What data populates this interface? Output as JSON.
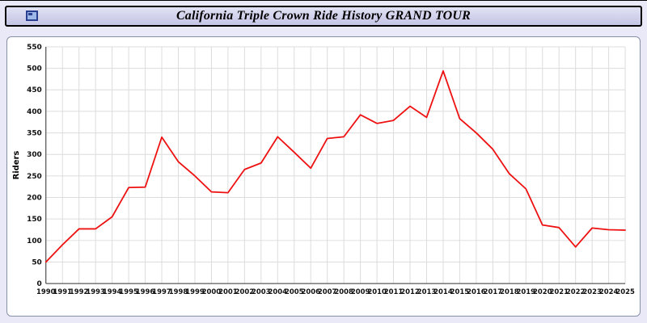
{
  "header": {
    "title": "California Triple Crown Ride History GRAND TOUR",
    "icon": "app-window-icon"
  },
  "colors": {
    "series": "#ee1111",
    "grid": "#dcdcdc",
    "axis": "#333333",
    "header_bg": "#cfcfec",
    "page_bg": "#e9e9f7"
  },
  "chart_data": {
    "type": "line",
    "title": "California Triple Crown Ride History GRAND TOUR",
    "xlabel": "",
    "ylabel": "Riders",
    "ylim": [
      0,
      550
    ],
    "ytick_step": 50,
    "grid": true,
    "legend": "none",
    "series_name": "Riders",
    "series_color": "#ee1111",
    "years": [
      1990,
      1991,
      1992,
      1993,
      1994,
      1995,
      1996,
      1997,
      1998,
      1999,
      2000,
      2001,
      2002,
      2003,
      2004,
      2005,
      2006,
      2007,
      2008,
      2009,
      2010,
      2011,
      2012,
      2013,
      2014,
      2015,
      2016,
      2017,
      2018,
      2019,
      2020,
      2021,
      2022,
      2023,
      2024,
      2025
    ],
    "values": [
      50,
      90,
      127,
      127,
      155,
      223,
      224,
      340,
      283,
      250,
      213,
      211,
      265,
      280,
      341,
      305,
      268,
      337,
      341,
      392,
      372,
      379,
      412,
      386,
      494,
      383,
      350,
      312,
      255,
      220,
      136,
      130,
      85,
      129,
      125,
      124
    ]
  }
}
